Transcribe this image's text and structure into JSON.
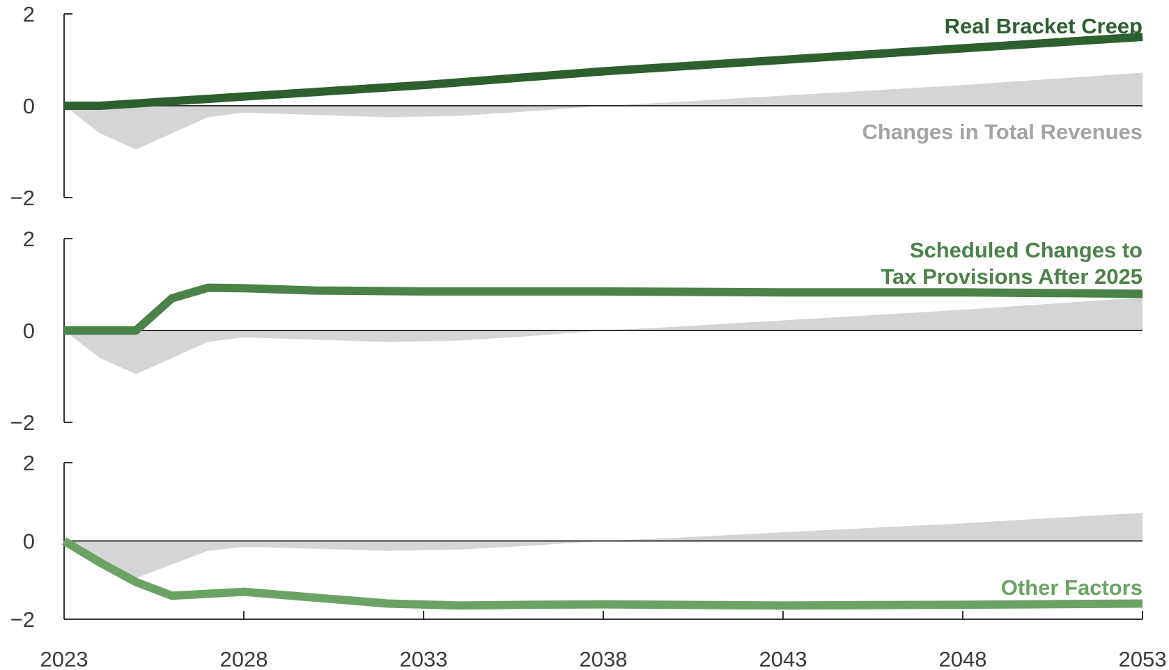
{
  "chart_data": {
    "type": "line",
    "x_ticks": [
      2023,
      2028,
      2033,
      2038,
      2043,
      2048,
      2053
    ],
    "ylim": [
      -2,
      2
    ],
    "y_ticks": [
      "2",
      "0",
      "−2"
    ],
    "shared_area": {
      "label": "Changes in Total Revenues",
      "color": "#d4d5d7",
      "x": [
        2023,
        2024,
        2025,
        2026,
        2027,
        2028,
        2030,
        2032,
        2034,
        2036,
        2038,
        2040,
        2043,
        2048,
        2053
      ],
      "values": [
        0.0,
        -0.6,
        -0.95,
        -0.6,
        -0.25,
        -0.15,
        -0.2,
        -0.25,
        -0.22,
        -0.12,
        0.0,
        0.08,
        0.22,
        0.45,
        0.72
      ]
    },
    "panels": [
      {
        "name": "Real Bracket Creep",
        "color": "#2d5f2f",
        "label_lines": [
          "Real Bracket Creep"
        ],
        "x": [
          2023,
          2024,
          2025,
          2026,
          2027,
          2028,
          2030,
          2033,
          2038,
          2043,
          2048,
          2053
        ],
        "values": [
          0.0,
          0.0,
          0.05,
          0.1,
          0.15,
          0.2,
          0.3,
          0.45,
          0.75,
          1.0,
          1.25,
          1.5
        ]
      },
      {
        "name": "Scheduled Changes to Tax Provisions After 2025",
        "color": "#4b8247",
        "label_lines": [
          "Scheduled Changes to",
          "Tax Provisions After 2025"
        ],
        "x": [
          2023,
          2024,
          2025,
          2026,
          2027,
          2028,
          2030,
          2033,
          2038,
          2043,
          2048,
          2053
        ],
        "values": [
          0.0,
          0.0,
          0.0,
          0.7,
          0.93,
          0.92,
          0.87,
          0.85,
          0.85,
          0.83,
          0.83,
          0.8
        ]
      },
      {
        "name": "Other Factors",
        "color": "#6ba365",
        "label_lines": [
          "Other Factors"
        ],
        "x": [
          2023,
          2024,
          2025,
          2026,
          2027,
          2028,
          2030,
          2032,
          2034,
          2036,
          2038,
          2043,
          2048,
          2053
        ],
        "values": [
          0.0,
          -0.55,
          -1.05,
          -1.4,
          -1.35,
          -1.3,
          -1.45,
          -1.6,
          -1.65,
          -1.63,
          -1.62,
          -1.65,
          -1.63,
          -1.6
        ]
      }
    ]
  }
}
